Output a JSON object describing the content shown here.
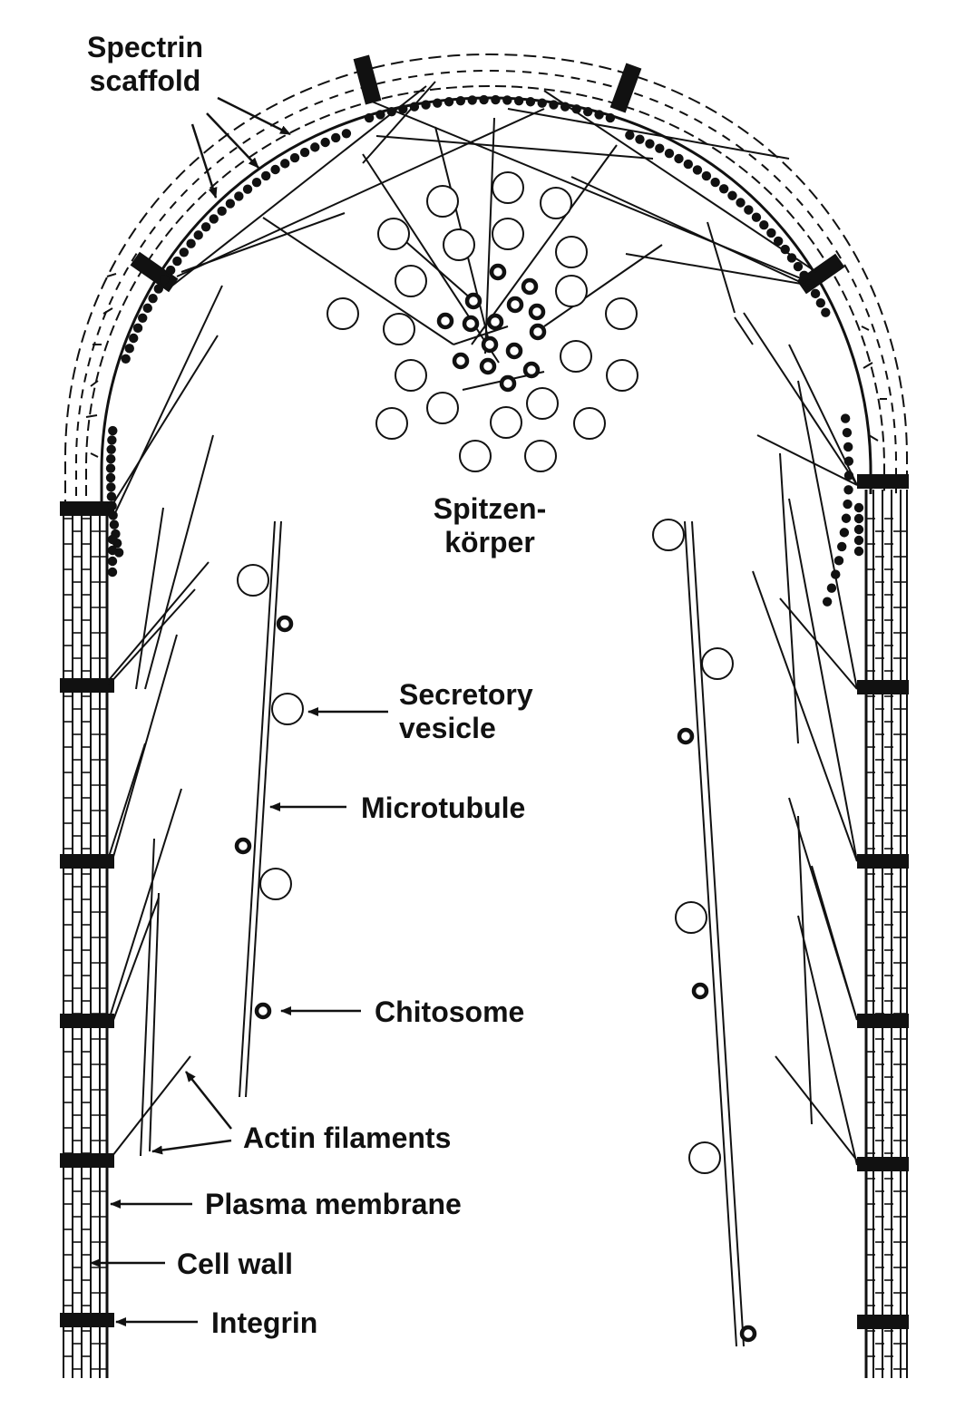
{
  "diagram": {
    "labels": {
      "spectrin_line1": "Spectrin",
      "spectrin_line2": "scaffold",
      "spitzen_line1": "Spitzen-",
      "spitzen_line2": "körper",
      "secretory_line1": "Secretory",
      "secretory_line2": "vesicle",
      "microtubule": "Microtubule",
      "chitosome": "Chitosome",
      "actin": "Actin filaments",
      "plasma_membrane": "Plasma membrane",
      "cell_wall": "Cell wall",
      "integrin": "Integrin"
    },
    "colors": {
      "ink": "#111111",
      "background": "#ffffff"
    }
  }
}
